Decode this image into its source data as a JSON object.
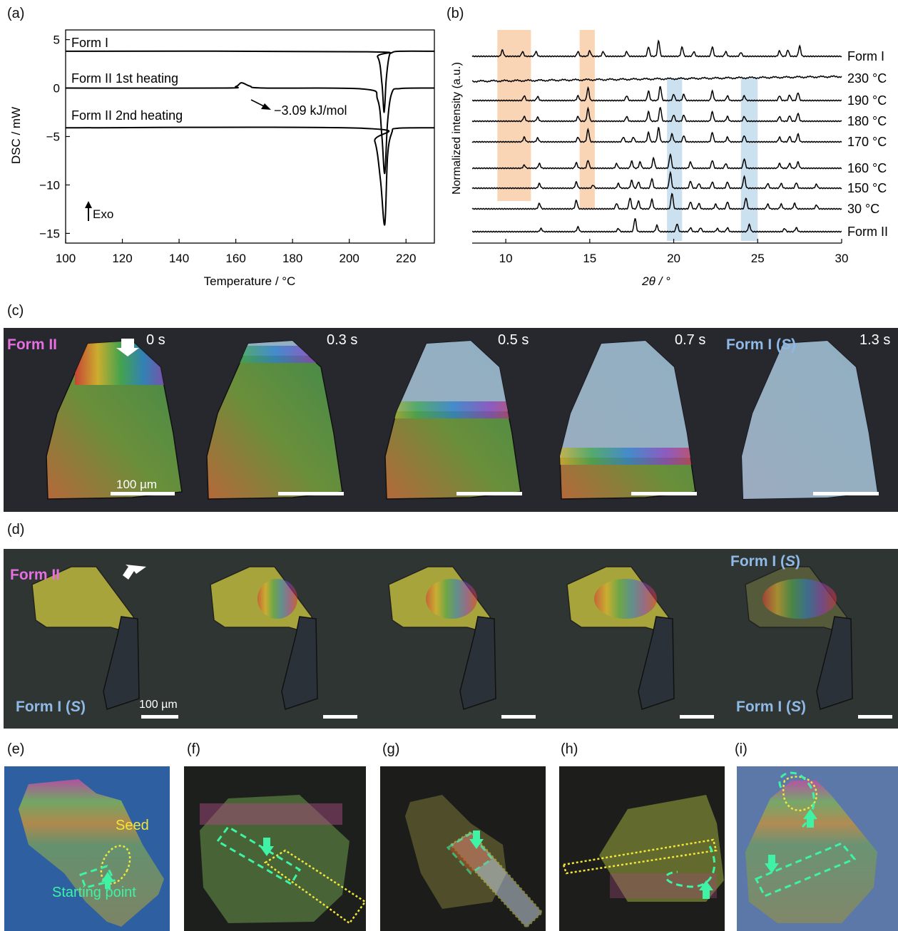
{
  "panels": {
    "a": "(a)",
    "b": "(b)",
    "c": "(c)",
    "d": "(d)",
    "e": "(e)",
    "f": "(f)",
    "g": "(g)",
    "h": "(h)",
    "i": "(i)"
  },
  "chart_data": [
    {
      "type": "line",
      "panel": "(a)",
      "xlabel": "Temperature / °C",
      "ylabel": "DSC / mW",
      "xlim": [
        100,
        230
      ],
      "ylim": [
        -16,
        6
      ],
      "xticks": [
        100,
        120,
        140,
        160,
        180,
        200,
        220
      ],
      "yticks": [
        5,
        0,
        -5,
        -10,
        -15
      ],
      "series": [
        {
          "name": "Form I",
          "baseline": 3.8,
          "x": [
            100,
            205,
            210,
            211.5,
            212.3,
            213,
            214,
            215,
            218,
            230
          ],
          "y": [
            3.8,
            3.75,
            3.2,
            0.5,
            -2.5,
            0.8,
            3.2,
            3.65,
            3.8,
            3.8
          ]
        },
        {
          "name": "Form II 1st heating",
          "baseline": 0.0,
          "x": [
            100,
            155,
            160,
            162,
            165,
            170,
            205,
            210,
            211.5,
            212.5,
            213.5,
            215,
            218,
            230
          ],
          "y": [
            0,
            0,
            0.15,
            0.55,
            0.2,
            0,
            -0.1,
            -1.2,
            -5.0,
            -8.8,
            -3.5,
            -0.5,
            -0.05,
            0
          ]
        },
        {
          "name": "Form II 2nd heating",
          "baseline": -4.1,
          "x": [
            100,
            205,
            209,
            211,
            212.5,
            213.5,
            215,
            217,
            230
          ],
          "y": [
            -4.1,
            -4.15,
            -5.5,
            -9.5,
            -14.1,
            -7.0,
            -4.6,
            -4.15,
            -4.1
          ]
        }
      ],
      "annotations": [
        "−3.09 kJ/mol",
        "Exo"
      ]
    },
    {
      "type": "line",
      "panel": "(b)",
      "xlabel": "2θ / °",
      "ylabel": "Normalized intensity (a.u.)",
      "xlim": [
        8,
        30
      ],
      "xticks": [
        10,
        15,
        20,
        25,
        30
      ],
      "highlight_bands_orange": [
        [
          9.5,
          11.5
        ],
        [
          14.4,
          15.3
        ]
      ],
      "highlight_bands_blue": [
        [
          19.6,
          20.5
        ],
        [
          24.0,
          25.0
        ]
      ],
      "series": [
        {
          "name": "Form I",
          "peaks": [
            [
              9.8,
              0.4
            ],
            [
              11.0,
              0.3
            ],
            [
              11.8,
              0.3
            ],
            [
              14.3,
              0.3
            ],
            [
              15.0,
              0.35
            ],
            [
              15.8,
              0.3
            ],
            [
              17.2,
              0.3
            ],
            [
              18.5,
              0.6
            ],
            [
              19.1,
              1.0
            ],
            [
              20.5,
              0.6
            ],
            [
              21.2,
              0.3
            ],
            [
              22.3,
              0.6
            ],
            [
              23.1,
              0.3
            ],
            [
              24.0,
              0.25
            ],
            [
              26.3,
              0.35
            ],
            [
              26.8,
              0.4
            ],
            [
              27.5,
              0.65
            ]
          ]
        },
        {
          "name": "230 °C",
          "peaks": []
        },
        {
          "name": "190 °C",
          "peaks": [
            [
              11.1,
              0.3
            ],
            [
              11.9,
              0.25
            ],
            [
              14.3,
              0.3
            ],
            [
              14.9,
              0.8
            ],
            [
              17.2,
              0.3
            ],
            [
              18.5,
              0.6
            ],
            [
              19.2,
              0.9
            ],
            [
              20.0,
              0.4
            ],
            [
              20.6,
              0.4
            ],
            [
              22.3,
              0.6
            ],
            [
              23.2,
              0.3
            ],
            [
              24.2,
              0.3
            ],
            [
              26.3,
              0.3
            ],
            [
              26.9,
              0.35
            ],
            [
              27.4,
              0.5
            ]
          ]
        },
        {
          "name": "180 °C",
          "peaks": [
            [
              11.1,
              0.3
            ],
            [
              11.9,
              0.25
            ],
            [
              14.3,
              0.3
            ],
            [
              14.9,
              0.8
            ],
            [
              17.2,
              0.3
            ],
            [
              18.5,
              0.6
            ],
            [
              19.2,
              0.9
            ],
            [
              20.0,
              0.4
            ],
            [
              20.6,
              0.4
            ],
            [
              22.3,
              0.6
            ],
            [
              23.2,
              0.3
            ],
            [
              24.2,
              0.3
            ],
            [
              26.3,
              0.3
            ],
            [
              26.9,
              0.35
            ],
            [
              27.4,
              0.5
            ]
          ]
        },
        {
          "name": "170 °C",
          "peaks": [
            [
              11.1,
              0.3
            ],
            [
              11.9,
              0.25
            ],
            [
              14.3,
              0.3
            ],
            [
              14.9,
              0.8
            ],
            [
              17.0,
              0.3
            ],
            [
              17.6,
              0.3
            ],
            [
              18.5,
              0.6
            ],
            [
              19.1,
              0.9
            ],
            [
              19.9,
              0.5
            ],
            [
              20.6,
              0.4
            ],
            [
              22.3,
              0.6
            ],
            [
              23.2,
              0.3
            ],
            [
              24.2,
              0.4
            ],
            [
              26.3,
              0.3
            ],
            [
              26.9,
              0.35
            ],
            [
              27.4,
              0.5
            ]
          ]
        },
        {
          "name": "160 °C",
          "peaks": [
            [
              11.1,
              0.2
            ],
            [
              12.0,
              0.3
            ],
            [
              14.2,
              0.35
            ],
            [
              14.9,
              0.5
            ],
            [
              16.6,
              0.3
            ],
            [
              17.5,
              0.45
            ],
            [
              18.0,
              0.4
            ],
            [
              18.8,
              0.65
            ],
            [
              19.8,
              0.9
            ],
            [
              21.0,
              0.4
            ],
            [
              22.3,
              0.5
            ],
            [
              23.1,
              0.3
            ],
            [
              24.2,
              0.6
            ],
            [
              26.3,
              0.3
            ],
            [
              26.9,
              0.3
            ],
            [
              27.4,
              0.4
            ]
          ]
        },
        {
          "name": "150 °C",
          "peaks": [
            [
              12.0,
              0.3
            ],
            [
              14.2,
              0.4
            ],
            [
              15.2,
              0.2
            ],
            [
              16.7,
              0.3
            ],
            [
              17.5,
              0.5
            ],
            [
              17.9,
              0.4
            ],
            [
              18.7,
              0.6
            ],
            [
              19.8,
              1.0
            ],
            [
              21.0,
              0.45
            ],
            [
              21.5,
              0.3
            ],
            [
              22.3,
              0.4
            ],
            [
              23.2,
              0.4
            ],
            [
              24.2,
              0.75
            ],
            [
              25.6,
              0.3
            ],
            [
              26.4,
              0.3
            ],
            [
              27.3,
              0.35
            ],
            [
              28.5,
              0.25
            ]
          ]
        },
        {
          "name": "30 °C",
          "peaks": [
            [
              12.0,
              0.35
            ],
            [
              14.2,
              0.55
            ],
            [
              16.6,
              0.35
            ],
            [
              17.4,
              0.7
            ],
            [
              17.9,
              0.5
            ],
            [
              18.7,
              0.6
            ],
            [
              19.9,
              1.0
            ],
            [
              21.0,
              0.45
            ],
            [
              21.5,
              0.35
            ],
            [
              22.5,
              0.3
            ],
            [
              23.2,
              0.45
            ],
            [
              24.3,
              0.7
            ],
            [
              25.6,
              0.3
            ],
            [
              26.4,
              0.3
            ],
            [
              27.2,
              0.35
            ],
            [
              28.5,
              0.25
            ]
          ]
        },
        {
          "name": "Form II",
          "peaks": [
            [
              12.1,
              0.2
            ],
            [
              14.3,
              0.3
            ],
            [
              16.7,
              0.2
            ],
            [
              17.7,
              0.85
            ],
            [
              19.0,
              0.4
            ],
            [
              20.2,
              0.5
            ],
            [
              21.0,
              0.25
            ],
            [
              21.6,
              0.25
            ],
            [
              22.6,
              0.2
            ],
            [
              23.2,
              0.25
            ],
            [
              24.5,
              0.45
            ],
            [
              26.6,
              0.2
            ],
            [
              27.3,
              0.25
            ]
          ]
        }
      ]
    }
  ],
  "micrographs_c": {
    "frames": [
      {
        "time": "0 s",
        "label": "Form II",
        "label_color": "#e56fe0"
      },
      {
        "time": "0.3 s"
      },
      {
        "time": "0.5 s"
      },
      {
        "time": "0.7 s"
      },
      {
        "time": "1.3 s",
        "label_form": "Form I (",
        "label_italic": "S",
        "label_close": ")",
        "label_color": "#8fb9e6"
      }
    ],
    "scale_bar": "100 µm",
    "background": "#27282d"
  },
  "micrographs_d": {
    "frames": [
      {
        "label_top": "Form II",
        "label_bottom_form": "Form I (",
        "label_bottom_italic": "S",
        "label_bottom_close": ")"
      },
      {},
      {},
      {},
      {
        "label_top_form": "Form I (",
        "label_top_italic": "S",
        "label_top_close": ")",
        "label_bottom_form": "Form I (",
        "label_bottom_italic": "S",
        "label_bottom_close": ")"
      }
    ],
    "scale_bar": "100 µm",
    "background": "#2f3532"
  },
  "micrographs_bottom": {
    "e_seed": "Seed",
    "e_start": "Starting point",
    "seed_color": "#f1e63a",
    "start_color": "#3ef2a6"
  }
}
